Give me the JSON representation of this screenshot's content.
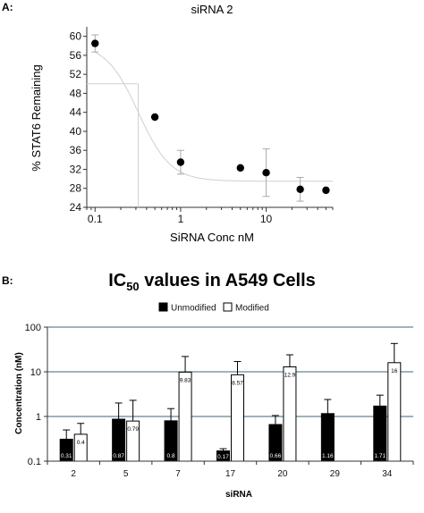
{
  "panel_a_label": "A:",
  "panel_b_label": "B:",
  "chart_data": [
    {
      "type": "scatter",
      "title": "siRNA 2",
      "xlabel": "SiRNA Conc nM",
      "ylabel": "% STAT6 Remaining",
      "xscale": "log",
      "xlim": [
        0.08,
        60
      ],
      "ylim": [
        24,
        62
      ],
      "xticks": [
        0.1,
        1,
        10
      ],
      "xtick_labels": [
        "0.1",
        "1",
        "10"
      ],
      "yticks": [
        24,
        28,
        32,
        36,
        40,
        44,
        48,
        52,
        56,
        60
      ],
      "points": [
        {
          "x": 0.1,
          "y": 58.5,
          "err": 1.8
        },
        {
          "x": 0.5,
          "y": 43.0,
          "err": 0
        },
        {
          "x": 1.0,
          "y": 33.5,
          "err": 2.5
        },
        {
          "x": 5.0,
          "y": 32.3,
          "err": 0
        },
        {
          "x": 10.0,
          "y": 31.3,
          "err": 5.0
        },
        {
          "x": 25.0,
          "y": 27.8,
          "err": 2.5
        },
        {
          "x": 50.0,
          "y": 27.6,
          "err": 0
        }
      ],
      "fit": {
        "top": 58.5,
        "bottom": 29.5,
        "ic50": 0.32,
        "hill": 2.3
      },
      "ic50_guide": {
        "x": 0.32,
        "y": 50
      }
    },
    {
      "type": "bar",
      "title_main": "IC",
      "title_sub": "50",
      "title_rest": " values in A549 Cells",
      "xlabel": "siRNA",
      "ylabel": "Concentration (nM)",
      "yscale": "log",
      "ylim": [
        0.1,
        100
      ],
      "yticks": [
        0.1,
        1,
        10,
        100
      ],
      "ytick_labels": [
        "0.1",
        "1",
        "10",
        "100"
      ],
      "categories": [
        "2",
        "5",
        "7",
        "17",
        "20",
        "29",
        "34"
      ],
      "series": [
        {
          "name": "Unmodified",
          "color": "#000000",
          "values": [
            0.31,
            0.87,
            0.8,
            0.17,
            0.66,
            1.16,
            1.71
          ],
          "errors": [
            0.5,
            2.0,
            1.5,
            0.19,
            1.05,
            2.4,
            3.0
          ]
        },
        {
          "name": "Modified",
          "color": "#ffffff",
          "values": [
            0.4,
            0.79,
            9.83,
            8.57,
            12.9,
            null,
            16
          ],
          "errors": [
            0.7,
            2.3,
            22,
            17,
            24,
            null,
            43
          ]
        }
      ],
      "value_labels": [
        [
          "0.31",
          "0.87",
          "0.8",
          "0.17",
          "0.66",
          "1.16",
          "1.71"
        ],
        [
          "0.4",
          "0.79",
          "9.83",
          "8.57",
          "12.9",
          "",
          "16"
        ]
      ]
    }
  ]
}
